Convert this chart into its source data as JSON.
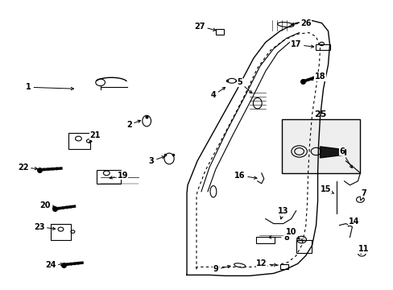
{
  "background_color": "#ffffff",
  "fig_width": 4.89,
  "fig_height": 3.6,
  "dpi": 100,
  "line_color": "#000000",
  "part_color": "#000000",
  "text_color": "#000000",
  "arrow_color": "#000000"
}
